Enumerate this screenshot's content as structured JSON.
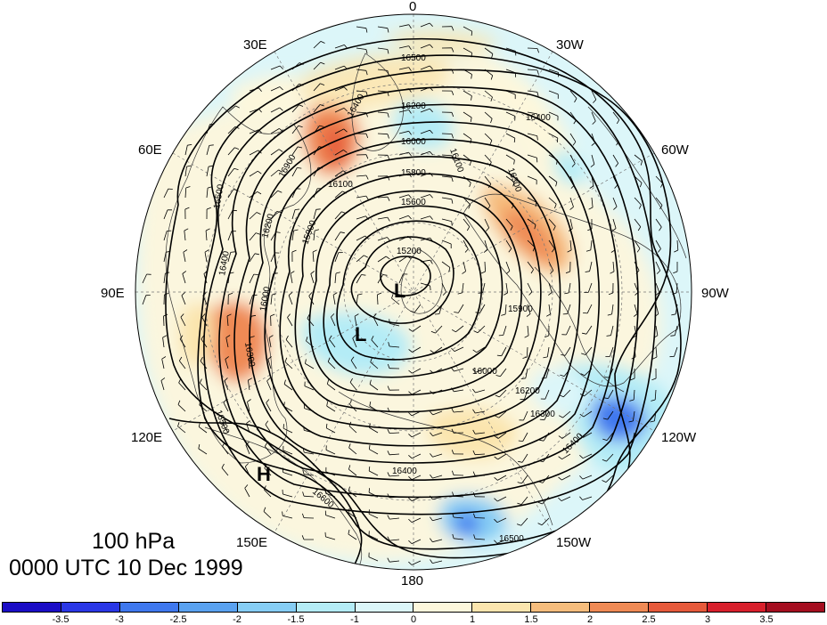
{
  "caption": {
    "level": "100 hPa",
    "time": "0000 UTC 10 Dec 1999"
  },
  "longitude_labels": [
    {
      "id": "lon-0",
      "text": "0"
    },
    {
      "id": "lon-30w",
      "text": "30W"
    },
    {
      "id": "lon-60w",
      "text": "60W"
    },
    {
      "id": "lon-90w",
      "text": "90W"
    },
    {
      "id": "lon-120w",
      "text": "120W"
    },
    {
      "id": "lon-150w",
      "text": "150W"
    },
    {
      "id": "lon-180",
      "text": "180"
    },
    {
      "id": "lon-150e",
      "text": "150E"
    },
    {
      "id": "lon-120e",
      "text": "120E"
    },
    {
      "id": "lon-90e",
      "text": "90E"
    },
    {
      "id": "lon-60e",
      "text": "60E"
    },
    {
      "id": "lon-30e",
      "text": "30E"
    }
  ],
  "pressure_centers": [
    "L",
    "L",
    "H"
  ],
  "contour_labels": [
    "16500",
    "16400",
    "16200",
    "16000",
    "15800",
    "15600",
    "15200",
    "16300",
    "16100",
    "16400",
    "15900",
    "16000",
    "16200",
    "16300",
    "16400",
    "16500",
    "16600",
    "16500",
    "16400",
    "16200",
    "16000",
    "15900",
    "16400",
    "16300",
    "16500",
    "16900",
    "16100"
  ],
  "colorbar": {
    "colors": [
      "#1b0dc6",
      "#2a37e6",
      "#3f78ee",
      "#5aa2f0",
      "#86cdf4",
      "#b4ecf6",
      "#dcf6f9",
      "#fdf7dc",
      "#fbe5ae",
      "#f6bd7d",
      "#ef8a55",
      "#e65a3b",
      "#d8202c",
      "#a50e20"
    ],
    "ticks": [
      "-3.5",
      "-3",
      "-2.5",
      "-2",
      "-1.5",
      "-1",
      "0",
      "1",
      "1.5",
      "2",
      "2.5",
      "3",
      "3.5"
    ]
  }
}
